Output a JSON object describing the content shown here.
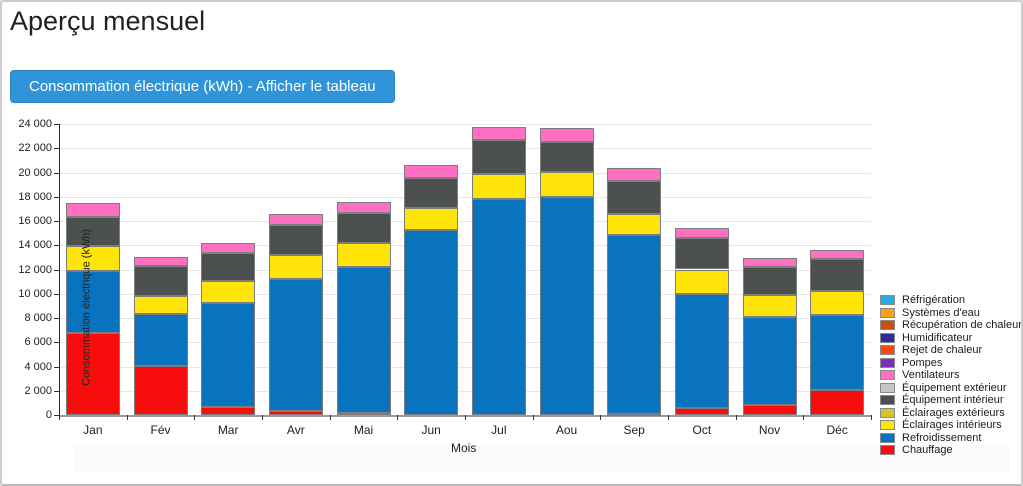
{
  "header": {
    "title": "Aperçu mensuel"
  },
  "toolbar": {
    "button_label": "Consommation électrique (kWh) - Afficher le tableau"
  },
  "chart_data": {
    "type": "bar",
    "stacked": true,
    "xlabel": "Mois",
    "ylabel": "Consommation électrique (kWh)",
    "ylim": [
      0,
      24000
    ],
    "ytick_step": 2000,
    "grid": true,
    "legend_position": "right",
    "categories": [
      "Jan",
      "Fév",
      "Mar",
      "Avr",
      "Mai",
      "Jun",
      "Jul",
      "Aou",
      "Sep",
      "Oct",
      "Nov",
      "Déc"
    ],
    "series": [
      {
        "name": "Chauffage",
        "color": "#f80c0c",
        "values": [
          6750,
          4050,
          700,
          300,
          200,
          0,
          0,
          0,
          100,
          550,
          800,
          2050
        ]
      },
      {
        "name": "Refroidissement",
        "color": "#0a73bf",
        "values": [
          5100,
          4250,
          8500,
          10930,
          12000,
          15230,
          17850,
          17990,
          14750,
          9440,
          7260,
          6180
        ]
      },
      {
        "name": "Éclairages intérieurs",
        "color": "#ffe40a",
        "values": [
          2050,
          1500,
          1850,
          1930,
          2000,
          1880,
          2010,
          2070,
          1760,
          2010,
          1820,
          2030
        ]
      },
      {
        "name": "Éclairages extérieurs",
        "color": "#d2c62c",
        "values": [
          0,
          0,
          0,
          0,
          0,
          0,
          0,
          0,
          0,
          0,
          0,
          0
        ]
      },
      {
        "name": "Équipement intérieur",
        "color": "#4c504e",
        "values": [
          2450,
          2500,
          2350,
          2515,
          2490,
          2400,
          2815,
          2480,
          2710,
          2570,
          2320,
          2570
        ]
      },
      {
        "name": "Équipement extérieur",
        "color": "#c6c6c6",
        "values": [
          0,
          0,
          0,
          0,
          0,
          0,
          0,
          0,
          0,
          0,
          0,
          0
        ]
      },
      {
        "name": "Ventilateurs",
        "color": "#ff70c2",
        "values": [
          1100,
          700,
          750,
          875,
          890,
          1100,
          1110,
          1100,
          1020,
          880,
          710,
          740
        ]
      },
      {
        "name": "Pompes",
        "color": "#7b2fbb",
        "values": [
          0,
          0,
          0,
          0,
          0,
          0,
          0,
          0,
          0,
          0,
          0,
          0
        ]
      },
      {
        "name": "Rejet de chaleur",
        "color": "#ff4713",
        "values": [
          0,
          0,
          0,
          0,
          0,
          0,
          0,
          0,
          0,
          0,
          0,
          0
        ]
      },
      {
        "name": "Humidificateur",
        "color": "#2e3192",
        "values": [
          0,
          0,
          0,
          0,
          0,
          0,
          0,
          0,
          0,
          0,
          0,
          0
        ]
      },
      {
        "name": "Récupération de chaleur",
        "color": "#c75109",
        "values": [
          0,
          0,
          0,
          0,
          0,
          0,
          0,
          0,
          0,
          0,
          0,
          0
        ]
      },
      {
        "name": "Systèmes d'eau",
        "color": "#faa21b",
        "values": [
          0,
          0,
          0,
          0,
          0,
          0,
          0,
          0,
          0,
          0,
          0,
          0
        ]
      },
      {
        "name": "Réfrigération",
        "color": "#29abe2",
        "values": [
          0,
          0,
          0,
          0,
          0,
          0,
          0,
          0,
          0,
          0,
          0,
          0
        ]
      }
    ]
  }
}
